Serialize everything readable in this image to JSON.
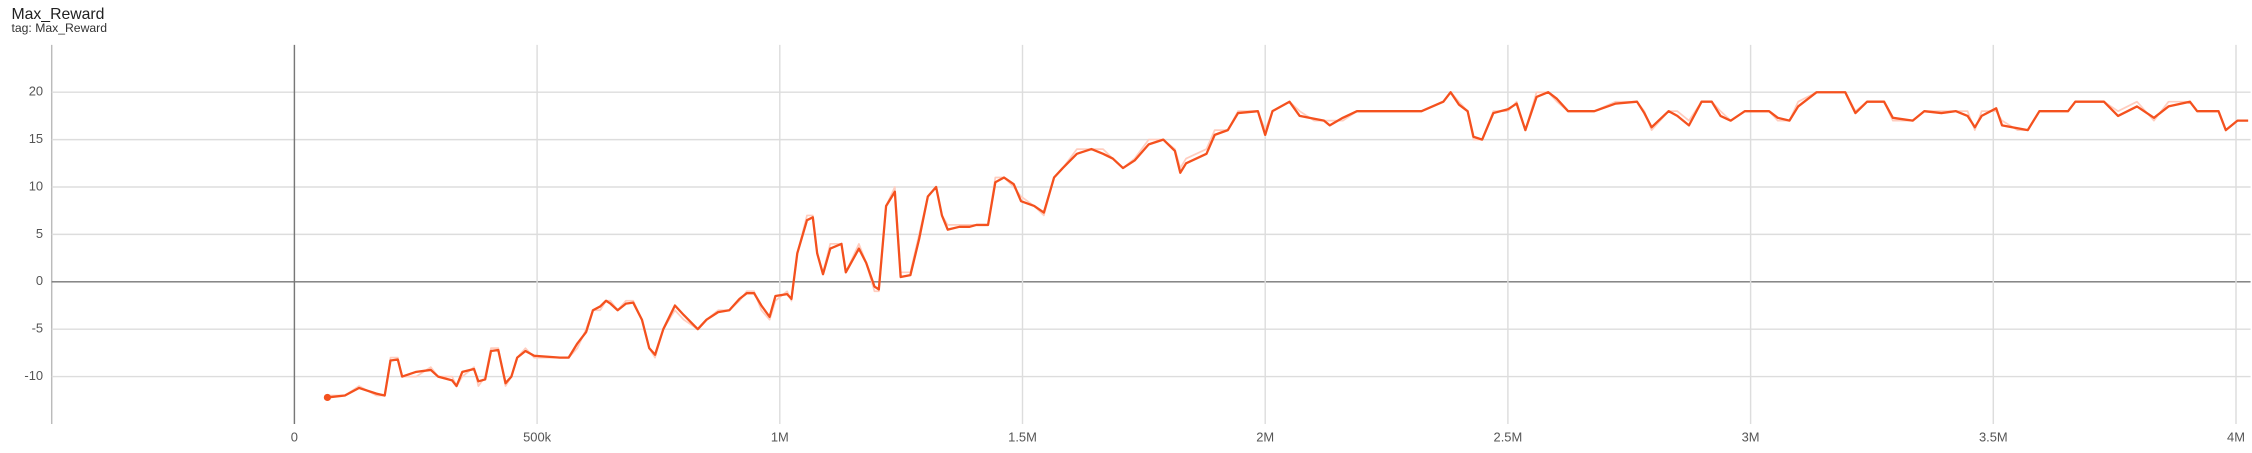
{
  "chart_data": {
    "type": "line",
    "title": "Max_Reward",
    "subtitle": "tag: Max_Reward",
    "x": [
      68000,
      104000,
      133000,
      169000,
      186000,
      198000,
      213000,
      222000,
      251000,
      281000,
      296000,
      325000,
      334000,
      346000,
      370000,
      379000,
      393000,
      405000,
      420000,
      435000,
      447000,
      459000,
      476000,
      494000,
      547000,
      565000,
      583000,
      601000,
      615000,
      630000,
      642000,
      651000,
      666000,
      683000,
      698000,
      716000,
      731000,
      743000,
      760000,
      784000,
      802000,
      831000,
      849000,
      873000,
      896000,
      917000,
      932000,
      947000,
      962000,
      979000,
      991000,
      1015000,
      1024000,
      1036000,
      1056000,
      1068000,
      1077000,
      1089000,
      1104000,
      1127000,
      1136000,
      1163000,
      1178000,
      1195000,
      1204000,
      1219000,
      1237000,
      1249000,
      1269000,
      1287000,
      1305000,
      1322000,
      1334000,
      1346000,
      1370000,
      1391000,
      1405000,
      1429000,
      1444000,
      1462000,
      1482000,
      1497000,
      1524000,
      1544000,
      1565000,
      1583000,
      1612000,
      1642000,
      1666000,
      1686000,
      1707000,
      1731000,
      1760000,
      1790000,
      1814000,
      1825000,
      1837000,
      1879000,
      1896000,
      1923000,
      1944000,
      1985000,
      2000000,
      2015000,
      2050000,
      2071000,
      2101000,
      2121000,
      2133000,
      2160000,
      2189000,
      2322000,
      2367000,
      2382000,
      2399000,
      2417000,
      2429000,
      2447000,
      2470000,
      2500000,
      2518000,
      2536000,
      2559000,
      2583000,
      2601000,
      2624000,
      2678000,
      2722000,
      2766000,
      2781000,
      2796000,
      2831000,
      2849000,
      2873000,
      2899000,
      2920000,
      2938000,
      2959000,
      2988000,
      3038000,
      3056000,
      3080000,
      3098000,
      3136000,
      3195000,
      3216000,
      3240000,
      3275000,
      3293000,
      3334000,
      3358000,
      3393000,
      3423000,
      3447000,
      3462000,
      3476000,
      3506000,
      3518000,
      3550000,
      3571000,
      3595000,
      3654000,
      3669000,
      3728000,
      3757000,
      3796000,
      3831000,
      3861000,
      3905000,
      3920000,
      3964000,
      3979000,
      4003000,
      4025000
    ],
    "series": [
      {
        "color": "#ffcdbf",
        "values": [
          -12,
          -12,
          -11,
          -12,
          -12,
          -8,
          -8,
          -10,
          -10,
          -9,
          -10,
          -10,
          -11,
          -10,
          -9,
          -11,
          -10,
          -7,
          -7,
          -11,
          -10,
          -8,
          -7,
          -8,
          -8,
          -8,
          -7,
          -5,
          -3,
          -3,
          -2,
          -2,
          -3,
          -2,
          -2,
          -4,
          -7,
          -8,
          -5,
          -3,
          -4,
          -5,
          -4,
          -3,
          -3,
          -2,
          -1,
          -1,
          -3,
          -4,
          -2,
          -1,
          -2,
          3,
          7,
          7,
          3,
          1,
          4,
          4,
          1,
          4,
          2,
          -1,
          -1,
          8,
          10,
          1,
          1,
          5,
          9,
          10,
          7,
          6,
          6,
          6,
          6,
          6,
          11,
          11,
          10,
          9,
          8,
          7,
          11,
          12,
          14,
          14,
          14,
          13,
          12,
          13,
          15,
          15,
          14,
          12,
          13,
          14,
          16,
          16,
          18,
          18,
          16,
          18,
          19,
          18,
          17,
          17,
          17,
          17,
          18,
          18,
          19,
          20,
          19,
          18,
          15,
          15,
          18,
          18,
          19,
          16,
          20,
          20,
          19,
          18,
          18,
          19,
          19,
          18,
          16,
          18,
          18,
          17,
          19,
          19,
          18,
          17,
          18,
          18,
          17,
          17,
          19,
          20,
          20,
          18,
          19,
          19,
          17,
          17,
          18,
          18,
          18,
          18,
          16,
          18,
          18,
          17,
          16,
          16,
          18,
          18,
          19,
          19,
          18,
          19,
          17,
          19,
          19,
          18,
          18,
          16,
          17,
          17
        ]
      },
      {
        "color": "#f4511e",
        "values": [
          -12.2,
          -12,
          -11.2,
          -11.8,
          -12,
          -8.3,
          -8.2,
          -10,
          -9.5,
          -9.3,
          -10,
          -10.4,
          -11,
          -9.5,
          -9.2,
          -10.5,
          -10.3,
          -7.3,
          -7.2,
          -10.7,
          -10,
          -8,
          -7.3,
          -7.8,
          -8,
          -8,
          -6.5,
          -5.3,
          -3,
          -2.6,
          -2,
          -2.3,
          -3,
          -2.3,
          -2.2,
          -4,
          -7,
          -7.7,
          -5,
          -2.5,
          -3.5,
          -5,
          -4,
          -3.2,
          -3,
          -1.8,
          -1.2,
          -1.2,
          -2.5,
          -3.7,
          -1.5,
          -1.3,
          -1.8,
          3,
          6.5,
          6.8,
          3,
          0.8,
          3.5,
          4,
          1,
          3.5,
          2,
          -0.5,
          -0.8,
          8,
          9.5,
          0.5,
          0.7,
          4.5,
          9,
          10,
          7,
          5.5,
          5.8,
          5.8,
          6,
          6,
          10.5,
          11,
          10.3,
          8.5,
          8,
          7.3,
          11,
          12,
          13.5,
          14,
          13.5,
          13,
          12,
          12.8,
          14.5,
          15,
          13.8,
          11.5,
          12.5,
          13.5,
          15.5,
          16,
          17.8,
          18,
          15.5,
          18,
          19,
          17.5,
          17.2,
          17,
          16.5,
          17.3,
          18,
          18,
          19,
          20,
          18.7,
          18,
          15.3,
          15,
          17.8,
          18.2,
          18.8,
          16,
          19.5,
          20,
          19.3,
          18,
          18,
          18.8,
          19,
          17.8,
          16.3,
          18,
          17.5,
          16.5,
          19,
          19,
          17.5,
          17,
          18,
          18,
          17.3,
          17,
          18.5,
          20,
          20,
          17.8,
          19,
          19,
          17.3,
          17,
          18,
          17.8,
          18,
          17.5,
          16.3,
          17.5,
          18.3,
          16.5,
          16.2,
          16,
          18,
          18,
          19,
          19,
          17.5,
          18.5,
          17.3,
          18.5,
          19,
          18,
          18,
          16,
          17,
          17
        ]
      }
    ],
    "xlim": [
      -500000,
      4030000
    ],
    "xticks": [
      0,
      {
        "value": 500000,
        "label": "500k"
      },
      {
        "value": 1000000,
        "label": "1M"
      },
      {
        "value": 1500000,
        "label": "1.5M"
      },
      {
        "value": 2000000,
        "label": "2M"
      },
      {
        "value": 2500000,
        "label": "2.5M"
      },
      {
        "value": 3000000,
        "label": "3M"
      },
      {
        "value": 3500000,
        "label": "3.5M"
      },
      {
        "value": 4000000,
        "label": "4M"
      }
    ],
    "ylim": [
      -15,
      25
    ],
    "yticks": [
      -10,
      -5,
      0,
      5,
      10,
      15,
      20
    ],
    "grid": true
  }
}
